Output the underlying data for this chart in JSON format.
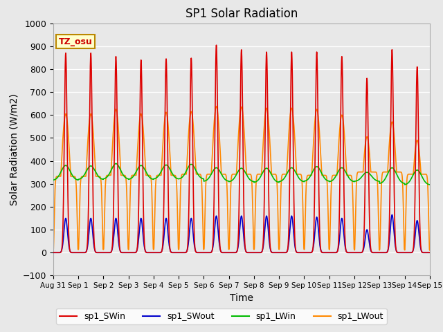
{
  "title": "SP1 Solar Radiation",
  "xlabel": "Time",
  "ylabel": "Solar Radiation (W/m2)",
  "ylim": [
    -100,
    1000
  ],
  "xlim_days": [
    0,
    15
  ],
  "bg_color": "#e8e8e8",
  "grid_color": "white",
  "tz_label": "TZ_osu",
  "tz_bg": "#ffffcc",
  "tz_border": "#bb8800",
  "series": {
    "sp1_SWin": {
      "color": "#dd0000",
      "lw": 1.2
    },
    "sp1_SWout": {
      "color": "#0000cc",
      "lw": 1.2
    },
    "sp1_LWin": {
      "color": "#00bb00",
      "lw": 1.2
    },
    "sp1_LWout": {
      "color": "#ff8800",
      "lw": 1.2
    }
  },
  "SWin_peaks": [
    870,
    870,
    855,
    840,
    845,
    848,
    905,
    885,
    875,
    875,
    875,
    855,
    760,
    885,
    810
  ],
  "SWout_peaks": [
    150,
    150,
    150,
    150,
    150,
    150,
    160,
    160,
    160,
    160,
    155,
    150,
    100,
    165,
    140
  ],
  "LWout_peaks": [
    605,
    605,
    625,
    605,
    612,
    615,
    638,
    635,
    630,
    630,
    625,
    600,
    505,
    570,
    490
  ],
  "LWout_night": [
    350,
    350,
    355,
    355,
    355,
    360,
    360,
    360,
    360,
    360,
    355,
    355,
    370,
    370,
    360
  ],
  "LWin_day": [
    380,
    378,
    388,
    380,
    382,
    385,
    370,
    368,
    368,
    370,
    375,
    370,
    350,
    370,
    360
  ],
  "LWin_night": [
    315,
    318,
    320,
    318,
    320,
    320,
    310,
    308,
    305,
    308,
    310,
    308,
    310,
    300,
    295
  ],
  "xtick_labels": [
    "Aug 31",
    "Sep 1",
    "Sep 2",
    "Sep 3",
    "Sep 4",
    "Sep 5",
    "Sep 6",
    "Sep 7",
    "Sep 8",
    "Sep 9",
    "Sep 10",
    "Sep 11",
    "Sep 12",
    "Sep 13",
    "Sep 14",
    "Sep 15"
  ],
  "xtick_positions": [
    0,
    1,
    2,
    3,
    4,
    5,
    6,
    7,
    8,
    9,
    10,
    11,
    12,
    13,
    14,
    15
  ],
  "legend_labels": [
    "sp1_SWin",
    "sp1_SWout",
    "sp1_LWin",
    "sp1_LWout"
  ],
  "legend_colors": [
    "#dd0000",
    "#0000cc",
    "#00bb00",
    "#ff8800"
  ]
}
